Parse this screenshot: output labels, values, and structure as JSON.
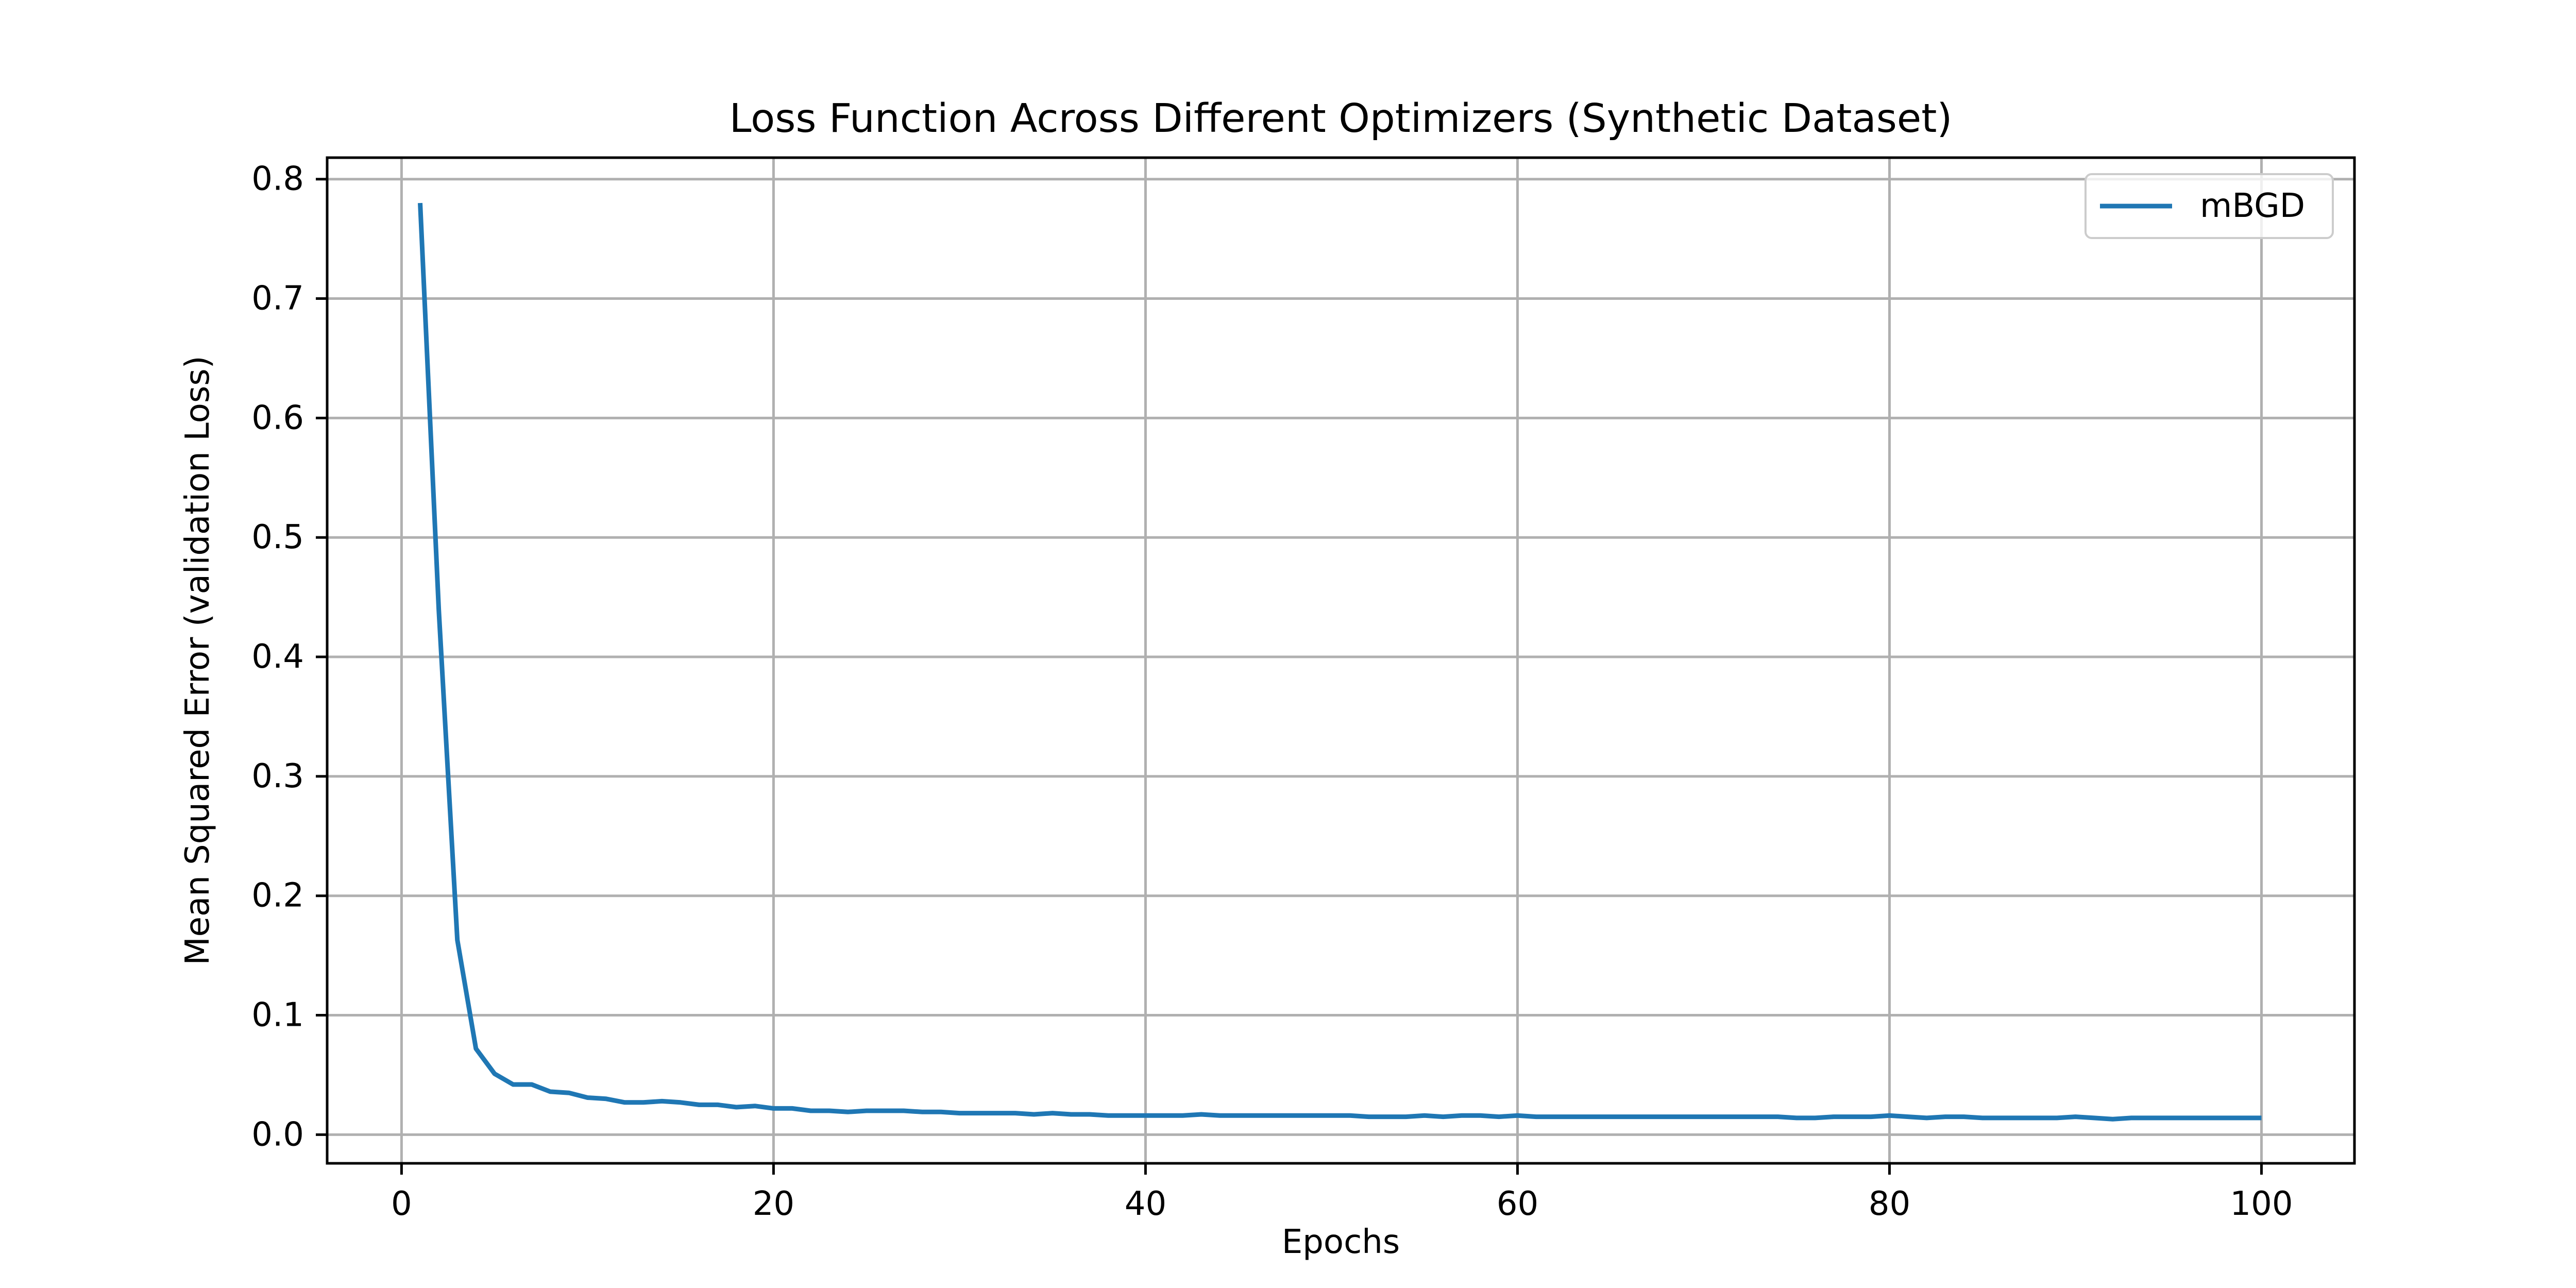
{
  "chart_data": {
    "type": "line",
    "title": "Loss Function Across Different Optimizers (Synthetic Dataset)",
    "xlabel": "Epochs",
    "ylabel": "Mean Squared Error (validation Loss)",
    "xlim": [
      -4,
      105
    ],
    "ylim": [
      -0.024,
      0.818
    ],
    "xticks": [
      0,
      20,
      40,
      60,
      80,
      100
    ],
    "yticks": [
      0.0,
      0.1,
      0.2,
      0.3,
      0.4,
      0.5,
      0.6,
      0.7,
      0.8
    ],
    "xtick_labels": [
      "0",
      "20",
      "40",
      "60",
      "80",
      "100"
    ],
    "ytick_labels": [
      "0.0",
      "0.1",
      "0.2",
      "0.3",
      "0.4",
      "0.5",
      "0.6",
      "0.7",
      "0.8"
    ],
    "grid": true,
    "legend_position": "top-right",
    "series": [
      {
        "name": "mBGD",
        "color": "#1f77b4",
        "x": [
          1,
          2,
          3,
          4,
          5,
          6,
          7,
          8,
          9,
          10,
          11,
          12,
          13,
          14,
          15,
          16,
          17,
          18,
          19,
          20,
          21,
          22,
          23,
          24,
          25,
          26,
          27,
          28,
          29,
          30,
          31,
          32,
          33,
          34,
          35,
          36,
          37,
          38,
          39,
          40,
          41,
          42,
          43,
          44,
          45,
          46,
          47,
          48,
          49,
          50,
          51,
          52,
          53,
          54,
          55,
          56,
          57,
          58,
          59,
          60,
          61,
          62,
          63,
          64,
          65,
          66,
          67,
          68,
          69,
          70,
          71,
          72,
          73,
          74,
          75,
          76,
          77,
          78,
          79,
          80,
          81,
          82,
          83,
          84,
          85,
          86,
          87,
          88,
          89,
          90,
          91,
          92,
          93,
          94,
          95,
          96,
          97,
          98,
          99,
          100
        ],
        "y": [
          0.78,
          0.44,
          0.163,
          0.072,
          0.051,
          0.042,
          0.042,
          0.036,
          0.035,
          0.031,
          0.03,
          0.027,
          0.027,
          0.028,
          0.027,
          0.025,
          0.025,
          0.023,
          0.024,
          0.022,
          0.022,
          0.02,
          0.02,
          0.019,
          0.02,
          0.02,
          0.02,
          0.019,
          0.019,
          0.018,
          0.018,
          0.018,
          0.018,
          0.017,
          0.018,
          0.017,
          0.017,
          0.016,
          0.016,
          0.016,
          0.016,
          0.016,
          0.017,
          0.016,
          0.016,
          0.016,
          0.016,
          0.016,
          0.016,
          0.016,
          0.016,
          0.015,
          0.015,
          0.015,
          0.016,
          0.015,
          0.016,
          0.016,
          0.015,
          0.016,
          0.015,
          0.015,
          0.015,
          0.015,
          0.015,
          0.015,
          0.015,
          0.015,
          0.015,
          0.015,
          0.015,
          0.015,
          0.015,
          0.015,
          0.014,
          0.014,
          0.015,
          0.015,
          0.015,
          0.016,
          0.015,
          0.014,
          0.015,
          0.015,
          0.014,
          0.014,
          0.014,
          0.014,
          0.014,
          0.015,
          0.014,
          0.013,
          0.014,
          0.014,
          0.014,
          0.014,
          0.014,
          0.014,
          0.014,
          0.014
        ]
      }
    ]
  }
}
